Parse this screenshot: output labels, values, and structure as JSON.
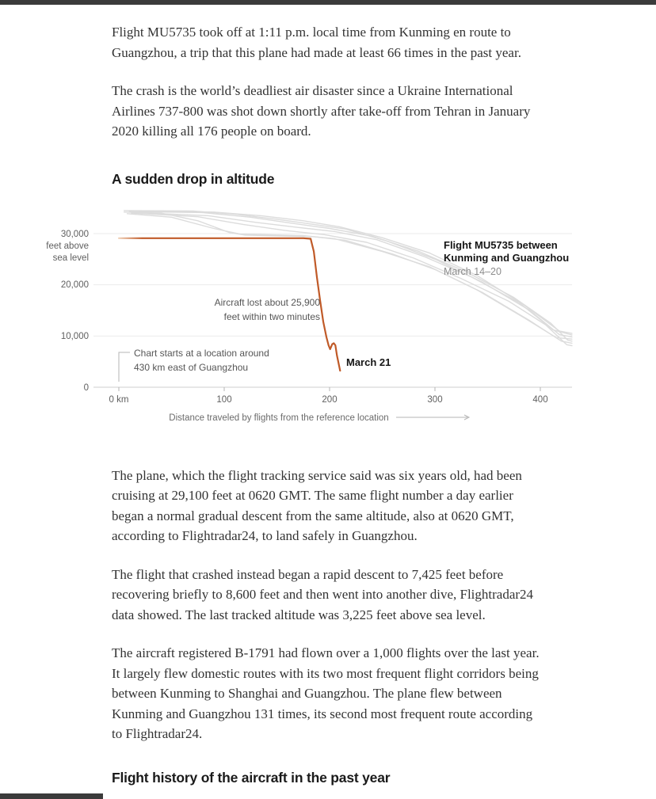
{
  "article": {
    "paragraphs": [
      "Flight MU5735 took off at 1:11 p.m. local time from Kunming en route to Guangzhou, a trip that this plane had made at least 66 times in the past year.",
      "The crash is the world’s deadliest air disaster since a Ukraine International Airlines 737-800 was shot down shortly after take-off from Tehran in January 2020 killing all 176 people on board.",
      "The plane, which the flight tracking service said was six years old, had been cruising at 29,100 feet at 0620 GMT. The same flight number a day earlier began a normal gradual descent from the same altitude, also at 0620 GMT, according to Flightradar24, to land safely in Guangzhou.",
      "The flight that crashed instead began a rapid descent to 7,425 feet before recovering briefly to 8,600 feet and then went into another dive, Flightradar24 data showed. The last tracked altitude was 3,225 feet above sea level.",
      "The aircraft registered B-1791 had flown over a 1,000 flights over the last year. It largely flew domestic routes with its two most frequent flight corridors being between Kunming to Shanghai and Guangzhou. The plane flew between Kunming and Guangzhou 131 times, its second most frequent route according to Flightradar24."
    ],
    "section_heading_1": "A sudden drop in altitude",
    "section_heading_2": "Flight history of the aircraft in the past year"
  },
  "chart_data": {
    "type": "line",
    "title": "A sudden drop in altitude",
    "xlabel": "Distance traveled by flights from the reference location",
    "ylabel_line1": "feet above",
    "ylabel_line2": "sea level",
    "xlim_km": [
      0,
      430
    ],
    "ylim_ft": [
      0,
      36000
    ],
    "grid": "horizontal",
    "gridlines_ft": [
      0,
      10000,
      20000,
      30000
    ],
    "y_tick_labels": [
      "30,000",
      "20,000",
      "10,000",
      "0"
    ],
    "x_tick_km": [
      0,
      100,
      200,
      300,
      400
    ],
    "x_tick_labels": [
      "0 km",
      "100",
      "200",
      "300",
      "400"
    ],
    "colors": {
      "accent_orange": "#c05a28",
      "accent_fade_from": "#f3d9c2",
      "gray_flights": "#dcdcdc",
      "grid": "#ebebeb",
      "axis": "#cfcfcf",
      "tick": "#b5b5b5"
    },
    "legend": {
      "line1": "Flight MU5735 between",
      "line2": "Kunming and Guangzhou",
      "sub": "March 14–20",
      "position": "right-of-plot, above gray lines"
    },
    "annotations": {
      "loss": {
        "line1": "Aircraft lost about 25,900",
        "line2": "feet within two minutes"
      },
      "start": {
        "line1": "Chart starts at a location around",
        "line2": "430 km east of Guangzhou"
      },
      "march21": "March 21"
    },
    "series": [
      {
        "name": "Flight MU5735 on March 21",
        "role": "highlight",
        "fade_in": true,
        "width": 2.2,
        "points_km_ft": [
          [
            0,
            29100
          ],
          [
            120,
            29100
          ],
          [
            175,
            29100
          ],
          [
            182,
            29000
          ],
          [
            185,
            26500
          ],
          [
            188,
            21500
          ],
          [
            191,
            17000
          ],
          [
            194,
            12800
          ],
          [
            197,
            9800
          ],
          [
            199,
            8200
          ],
          [
            200.5,
            7425
          ],
          [
            202.5,
            8400
          ],
          [
            204,
            8600
          ],
          [
            205.5,
            8200
          ],
          [
            207,
            6200
          ],
          [
            210,
            3225
          ]
        ]
      },
      {
        "name": "MU5735 March 14-20 flight 1",
        "role": "context",
        "width": 1.4,
        "points_km_ft": [
          [
            5,
            34500
          ],
          [
            70,
            34400
          ],
          [
            110,
            33800
          ],
          [
            150,
            32800
          ],
          [
            185,
            31800
          ],
          [
            215,
            30900
          ],
          [
            255,
            28500
          ],
          [
            300,
            25000
          ],
          [
            345,
            20500
          ],
          [
            390,
            15000
          ],
          [
            418,
            10300
          ],
          [
            430,
            9800
          ]
        ]
      },
      {
        "name": "MU5735 March 14-20 flight 2",
        "role": "context",
        "width": 1.4,
        "points_km_ft": [
          [
            10,
            34300
          ],
          [
            80,
            34100
          ],
          [
            125,
            33200
          ],
          [
            165,
            32000
          ],
          [
            200,
            31000
          ],
          [
            240,
            29500
          ],
          [
            285,
            26500
          ],
          [
            330,
            22500
          ],
          [
            375,
            17500
          ],
          [
            410,
            12500
          ],
          [
            426,
            9200
          ],
          [
            430,
            9000
          ]
        ]
      },
      {
        "name": "MU5735 March 14-20 flight 3",
        "role": "context",
        "width": 1.4,
        "points_km_ft": [
          [
            5,
            34200
          ],
          [
            40,
            34000
          ],
          [
            75,
            32500
          ],
          [
            105,
            30200
          ],
          [
            120,
            29700
          ],
          [
            185,
            29400
          ],
          [
            215,
            28700
          ],
          [
            260,
            26000
          ],
          [
            300,
            23000
          ],
          [
            345,
            18500
          ],
          [
            390,
            13000
          ],
          [
            420,
            9000
          ],
          [
            430,
            8600
          ]
        ]
      },
      {
        "name": "MU5735 March 14-20 flight 4",
        "role": "context",
        "width": 1.4,
        "points_km_ft": [
          [
            15,
            34100
          ],
          [
            85,
            33500
          ],
          [
            130,
            32200
          ],
          [
            170,
            31200
          ],
          [
            205,
            30400
          ],
          [
            245,
            28800
          ],
          [
            290,
            25500
          ],
          [
            335,
            21500
          ],
          [
            380,
            16500
          ],
          [
            412,
            11200
          ],
          [
            430,
            10200
          ]
        ]
      },
      {
        "name": "MU5735 March 14-20 flight 5",
        "role": "context",
        "width": 1.4,
        "points_km_ft": [
          [
            8,
            33900
          ],
          [
            50,
            33200
          ],
          [
            90,
            31000
          ],
          [
            115,
            29900
          ],
          [
            175,
            29600
          ],
          [
            205,
            29000
          ],
          [
            250,
            26500
          ],
          [
            295,
            23500
          ],
          [
            340,
            19000
          ],
          [
            385,
            13500
          ],
          [
            415,
            9700
          ],
          [
            430,
            9400
          ]
        ]
      },
      {
        "name": "MU5735 March 14-20 flight 6",
        "role": "context",
        "width": 1.4,
        "points_km_ft": [
          [
            20,
            34400
          ],
          [
            90,
            34200
          ],
          [
            135,
            33500
          ],
          [
            175,
            32500
          ],
          [
            210,
            31300
          ],
          [
            250,
            29200
          ],
          [
            295,
            26200
          ],
          [
            340,
            21800
          ],
          [
            385,
            16000
          ],
          [
            418,
            11000
          ],
          [
            430,
            10500
          ]
        ]
      },
      {
        "name": "MU5735 March 14-20 flight 7",
        "role": "context",
        "width": 1.4,
        "points_km_ft": [
          [
            12,
            34000
          ],
          [
            75,
            33300
          ],
          [
            118,
            31800
          ],
          [
            158,
            30600
          ],
          [
            195,
            29800
          ],
          [
            235,
            28300
          ],
          [
            280,
            25200
          ],
          [
            325,
            21200
          ],
          [
            370,
            16800
          ],
          [
            405,
            12200
          ],
          [
            425,
            8300
          ],
          [
            430,
            8100
          ]
        ]
      }
    ]
  }
}
